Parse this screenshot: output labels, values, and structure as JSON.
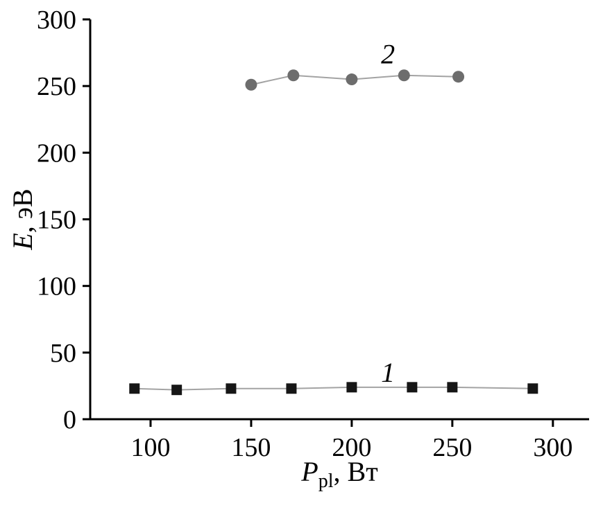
{
  "chart_data": {
    "type": "line",
    "title": "",
    "xlabel": {
      "italic": "P",
      "sub": "pl",
      "rest": ", Вт"
    },
    "ylabel": {
      "italic": "E",
      "rest": ", эВ"
    },
    "xlim": [
      70,
      318
    ],
    "ylim": [
      0,
      300
    ],
    "x_ticks": [
      100,
      150,
      200,
      250,
      300
    ],
    "y_ticks": [
      0,
      50,
      100,
      150,
      200,
      250,
      300
    ],
    "grid": false,
    "legend_position": "none",
    "series": [
      {
        "name": "1",
        "marker": "square",
        "marker_color": "#161616",
        "line_color": "#a3a3a3",
        "x": [
          92,
          113,
          140,
          170,
          200,
          230,
          250,
          290
        ],
        "y": [
          23,
          22,
          23,
          23,
          24,
          24,
          24,
          23
        ]
      },
      {
        "name": "2",
        "marker": "circle",
        "marker_color": "#6d6d6d",
        "line_color": "#a3a3a3",
        "x": [
          150,
          171,
          200,
          226,
          253
        ],
        "y": [
          251,
          258,
          255,
          258,
          257
        ]
      }
    ],
    "annotations": [
      {
        "label": "1",
        "x": 218,
        "y": 28
      },
      {
        "label": "2",
        "x": 218,
        "y": 267
      }
    ]
  }
}
